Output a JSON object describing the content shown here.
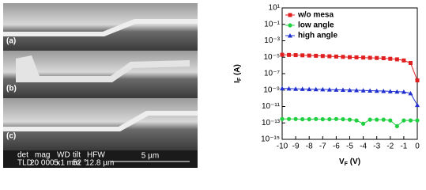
{
  "images": {
    "labels": [
      "(a)",
      "(b)",
      "(c)"
    ],
    "info": [
      "det",
      "TLD",
      "mag",
      "20 000 x",
      "WD",
      "5.1 mm",
      "tilt",
      "52 °",
      "HFW",
      "12.8 µm",
      "5 µm"
    ]
  },
  "chart_data": {
    "type": "line",
    "log_y": true,
    "legend": "top-left",
    "xlabel": {
      "main": "V",
      "sub": "F",
      "unit": " (V)"
    },
    "ylabel": {
      "main": "I",
      "sub": "F",
      "unit": " (A)"
    },
    "xlim": [
      -10,
      0
    ],
    "xticks": [
      -10,
      -9,
      -8,
      -7,
      -6,
      -5,
      -4,
      -3,
      -2,
      -1,
      0
    ],
    "ylim": [
      1e-15,
      10
    ],
    "yticks": [
      {
        "value": 10,
        "label": "10¹"
      },
      {
        "value": 0.1,
        "label": "10⁻¹"
      },
      {
        "value": 0.001,
        "label": "10⁻³"
      },
      {
        "value": 1e-05,
        "label": "10⁻⁵"
      },
      {
        "value": 1e-07,
        "label": "10⁻⁷"
      },
      {
        "value": 1e-09,
        "label": "10⁻⁹"
      },
      {
        "value": 1e-11,
        "label": "10⁻¹¹"
      },
      {
        "value": 1e-13,
        "label": "10⁻¹³"
      },
      {
        "value": 1e-15,
        "label": "10⁻¹⁵"
      }
    ],
    "x": [
      -10,
      -9.5,
      -9,
      -8.5,
      -8,
      -7.5,
      -7,
      -6.5,
      -6,
      -5.5,
      -5,
      -4.5,
      -4,
      -3.5,
      -3,
      -2.5,
      -2,
      -1.5,
      -1,
      -0.5,
      0
    ],
    "series": [
      {
        "name": "w/o mesa",
        "color": "#e02020",
        "marker": "square",
        "values": [
          2e-05,
          1.9e-05,
          1.8e-05,
          1.7e-05,
          1.6e-05,
          1.5e-05,
          1.4e-05,
          1.3e-05,
          1.2e-05,
          1.1e-05,
          1e-05,
          9.5e-06,
          9e-06,
          8.5e-06,
          8e-06,
          7.5e-06,
          6.5e-06,
          5.5e-06,
          4e-06,
          2e-06,
          1.5e-08
        ]
      },
      {
        "name": "low angle",
        "color": "#20d040",
        "marker": "circle",
        "values": [
          3e-13,
          3e-13,
          3e-13,
          2.8e-13,
          2.8e-13,
          3e-13,
          2.8e-13,
          2.8e-13,
          3e-13,
          2.8e-13,
          2.5e-13,
          2e-13,
          8e-14,
          2.5e-13,
          2.5e-13,
          2.5e-13,
          2e-13,
          4e-14,
          2e-13,
          2e-13,
          2e-13
        ]
      },
      {
        "name": "high angle",
        "color": "#2030d0",
        "marker": "triangle",
        "values": [
          1.6e-09,
          1.5e-09,
          1.4e-09,
          1.35e-09,
          1.3e-09,
          1.25e-09,
          1.2e-09,
          1.15e-09,
          1.1e-09,
          1.05e-09,
          1e-09,
          9.5e-10,
          9e-10,
          8.5e-10,
          8e-10,
          7.5e-10,
          7e-10,
          6.5e-10,
          6e-10,
          4e-10,
          1.5e-11
        ]
      }
    ]
  }
}
